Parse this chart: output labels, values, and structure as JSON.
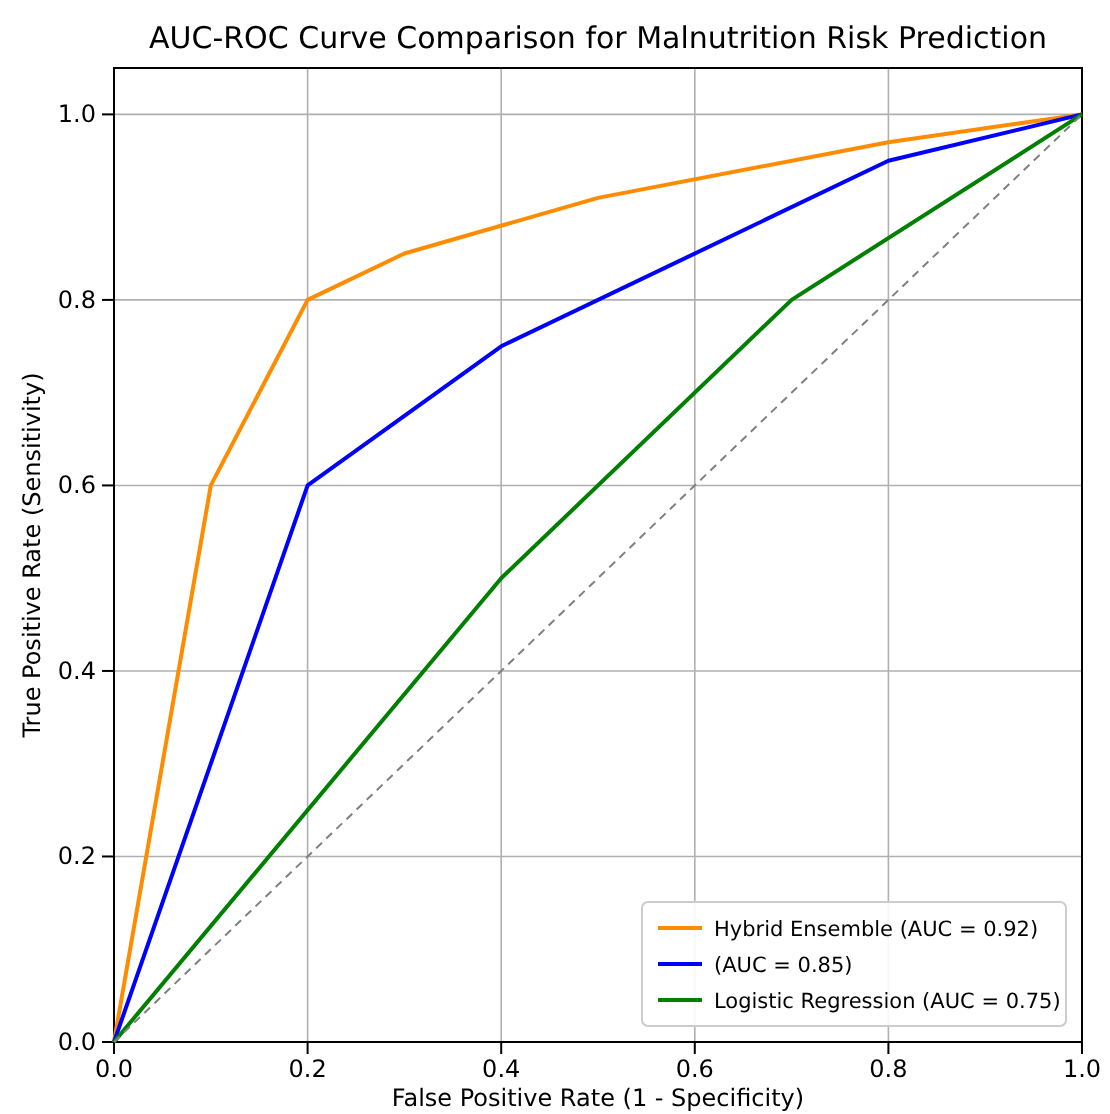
{
  "chart_data": {
    "type": "line",
    "title": "AUC-ROC Curve Comparison for Malnutrition Risk Prediction",
    "xlabel": "False Positive Rate (1 - Specificity)",
    "ylabel": "True Positive Rate (Sensitivity)",
    "xlim": [
      0,
      1
    ],
    "ylim": [
      0,
      1.05
    ],
    "xticks": [
      {
        "value": 0,
        "label": "0.0"
      },
      {
        "value": 0.2,
        "label": "0.2"
      },
      {
        "value": 0.4,
        "label": "0.4"
      },
      {
        "value": 0.6,
        "label": "0.6"
      },
      {
        "value": 0.8,
        "label": "0.8"
      },
      {
        "value": 1,
        "label": "1.0"
      }
    ],
    "yticks": [
      {
        "value": 0,
        "label": "0.0"
      },
      {
        "value": 0.2,
        "label": "0.2"
      },
      {
        "value": 0.4,
        "label": "0.4"
      },
      {
        "value": 0.6,
        "label": "0.6"
      },
      {
        "value": 0.8,
        "label": "0.8"
      },
      {
        "value": 1,
        "label": "1.0"
      }
    ],
    "grid": true,
    "legend": "bottom right",
    "marker": "none",
    "series": [
      {
        "name": "Hybrid Ensemble (AUC = 0.92)",
        "color": "#ff8c00",
        "x": [
          0,
          0.1,
          0.2,
          0.3,
          0.5,
          0.8,
          1
        ],
        "values": [
          0,
          0.6,
          0.8,
          0.85,
          0.91,
          0.97,
          1
        ]
      },
      {
        "name": "(AUC = 0.85)",
        "color": "#0000ff",
        "x": [
          0,
          0.2,
          0.4,
          0.8,
          1
        ],
        "values": [
          0,
          0.6,
          0.75,
          0.95,
          1
        ]
      },
      {
        "name": "Logistic Regression (AUC = 0.75)",
        "color": "#008000",
        "x": [
          0,
          0.4,
          0.7,
          1
        ],
        "values": [
          0,
          0.5,
          0.8,
          1
        ]
      },
      {
        "color": "#808080",
        "line_style": "dashed",
        "x": [
          0,
          1
        ],
        "values": [
          0,
          1
        ]
      }
    ]
  }
}
